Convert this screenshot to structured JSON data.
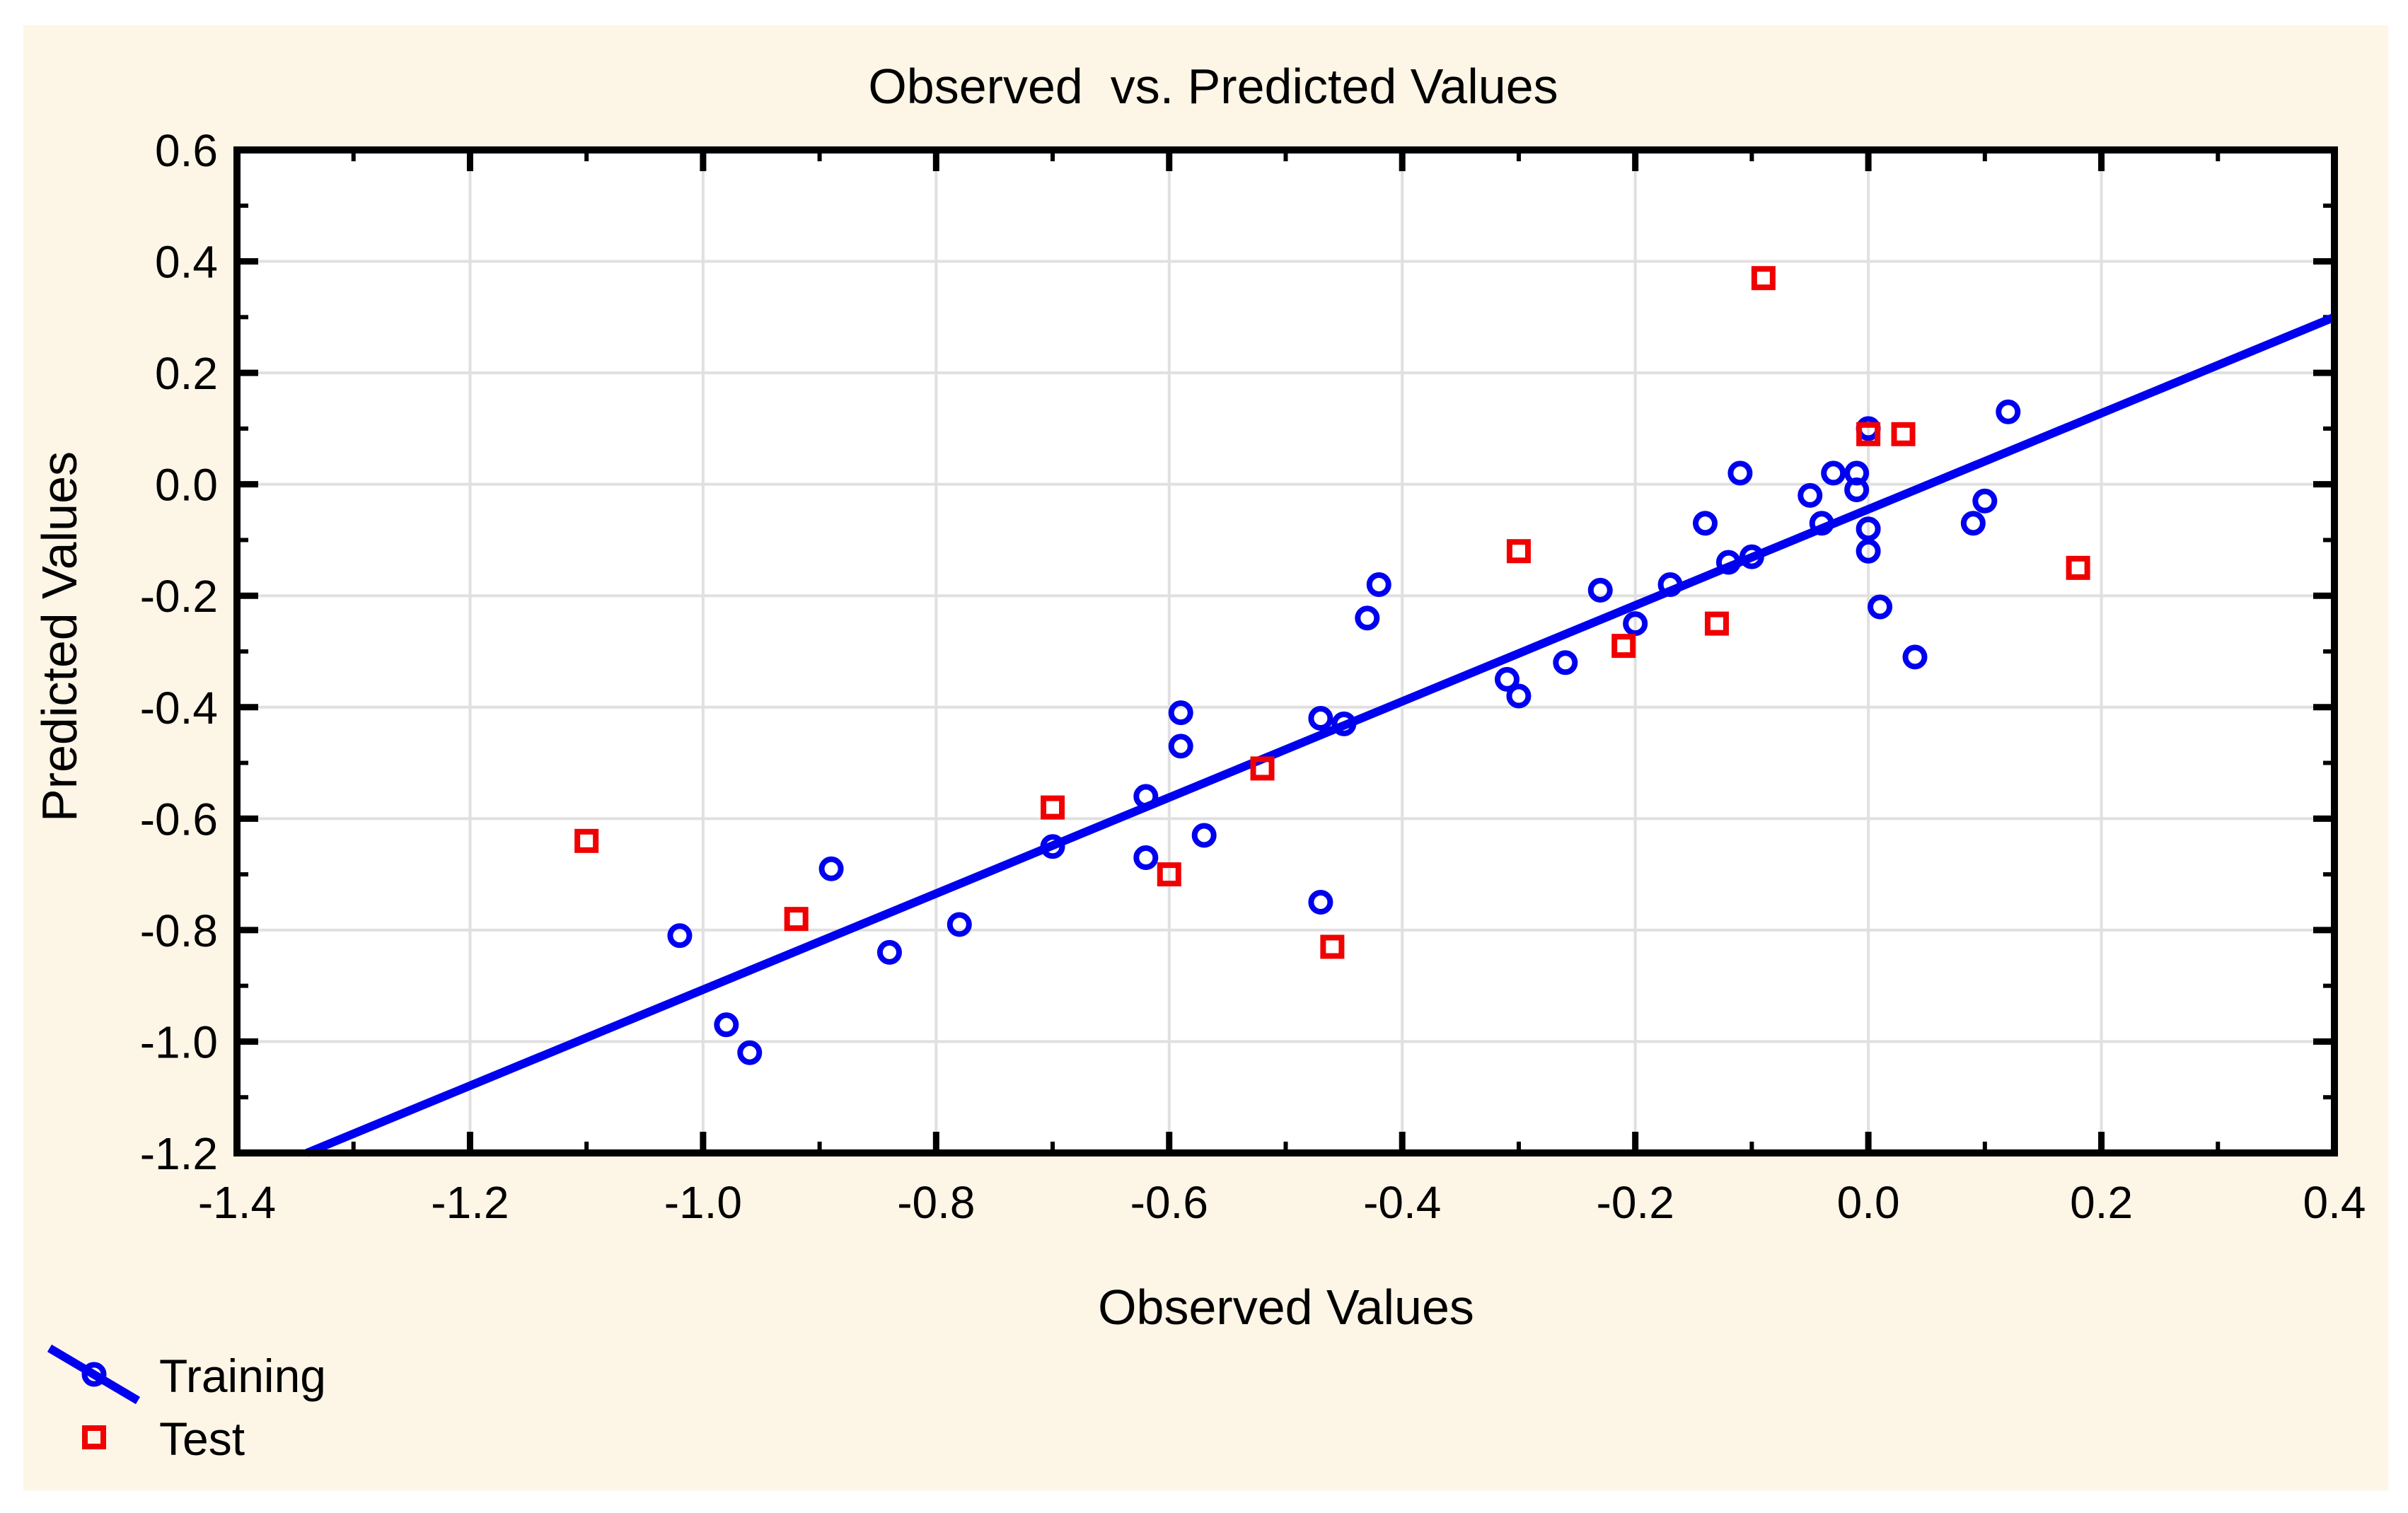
{
  "title": "Observed  vs. Predicted Values",
  "x_axis": {
    "label": "Observed Values",
    "min": -1.4,
    "max": 0.4,
    "major_step": 0.2,
    "minor_step": 0.1,
    "tick_values": [
      -1.4,
      -1.2,
      -1.0,
      -0.8,
      -0.6,
      -0.4,
      -0.2,
      0.0,
      0.2,
      0.4
    ],
    "tick_labels": [
      "-1.4",
      "-1.2",
      "-1.0",
      "-0.8",
      "-0.6",
      "-0.4",
      "-0.2",
      "0.0",
      "0.2",
      "0.4"
    ]
  },
  "y_axis": {
    "label": "Predicted Values",
    "min": -1.2,
    "max": 0.6,
    "major_step": 0.2,
    "minor_step": 0.1,
    "tick_values": [
      0.6,
      0.4,
      0.2,
      0.0,
      -0.2,
      -0.4,
      -0.6,
      -0.8,
      -1.0,
      -1.2
    ],
    "tick_labels": [
      "0.6",
      "0.4",
      "0.2",
      "0.0",
      "-0.2",
      "-0.4",
      "-0.6",
      "-0.8",
      "-1.0",
      "-1.2"
    ]
  },
  "legend": {
    "items": [
      {
        "label": "Training",
        "marker": "circle-on-line",
        "color": "#0000F0"
      },
      {
        "label": "Test",
        "marker": "square",
        "color": "#F00000"
      }
    ]
  },
  "colors": {
    "page_background": "#FFFFFF",
    "panel_background": "#FDF5E6",
    "plot_background": "#FFFFFF",
    "grid": "#E0E0E0",
    "axis": "#000000",
    "training": "#0000F0",
    "test": "#F00000",
    "fit_line": "#0000F0"
  },
  "chart_data": {
    "type": "scatter",
    "title": "Observed  vs. Predicted Values",
    "xlabel": "Observed Values",
    "ylabel": "Predicted Values",
    "xlim": [
      -1.4,
      0.4
    ],
    "ylim": [
      -1.2,
      0.6
    ],
    "grid": true,
    "legend_position": "bottom-left",
    "series": [
      {
        "name": "Training",
        "marker": "circle",
        "color": "#0000F0",
        "points": [
          [
            -1.02,
            -0.81
          ],
          [
            -0.98,
            -0.97
          ],
          [
            -0.96,
            -1.02
          ],
          [
            -0.89,
            -0.69
          ],
          [
            -0.84,
            -0.84
          ],
          [
            -0.78,
            -0.79
          ],
          [
            -0.7,
            -0.65
          ],
          [
            -0.62,
            -0.56
          ],
          [
            -0.62,
            -0.67
          ],
          [
            -0.59,
            -0.41
          ],
          [
            -0.59,
            -0.47
          ],
          [
            -0.57,
            -0.63
          ],
          [
            -0.47,
            -0.42
          ],
          [
            -0.45,
            -0.43
          ],
          [
            -0.47,
            -0.75
          ],
          [
            -0.42,
            -0.18
          ],
          [
            -0.43,
            -0.24
          ],
          [
            -0.31,
            -0.35
          ],
          [
            -0.3,
            -0.38
          ],
          [
            -0.26,
            -0.32
          ],
          [
            -0.23,
            -0.19
          ],
          [
            -0.2,
            -0.25
          ],
          [
            -0.17,
            -0.18
          ],
          [
            -0.14,
            -0.07
          ],
          [
            -0.12,
            -0.14
          ],
          [
            -0.1,
            -0.13
          ],
          [
            -0.11,
            0.02
          ],
          [
            -0.05,
            -0.02
          ],
          [
            -0.04,
            -0.07
          ],
          [
            -0.03,
            0.02
          ],
          [
            -0.01,
            0.02
          ],
          [
            -0.01,
            -0.01
          ],
          [
            0.0,
            0.1
          ],
          [
            0.0,
            -0.08
          ],
          [
            0.0,
            -0.12
          ],
          [
            0.01,
            -0.22
          ],
          [
            0.04,
            -0.31
          ],
          [
            0.09,
            -0.07
          ],
          [
            0.1,
            -0.03
          ],
          [
            0.12,
            0.13
          ]
        ]
      },
      {
        "name": "Test",
        "marker": "square",
        "color": "#F00000",
        "points": [
          [
            -1.1,
            -0.64
          ],
          [
            -0.92,
            -0.78
          ],
          [
            -0.7,
            -0.58
          ],
          [
            -0.6,
            -0.7
          ],
          [
            -0.52,
            -0.51
          ],
          [
            -0.46,
            -0.83
          ],
          [
            -0.3,
            -0.12
          ],
          [
            -0.21,
            -0.29
          ],
          [
            -0.13,
            -0.25
          ],
          [
            -0.09,
            0.37
          ],
          [
            0.0,
            0.09
          ],
          [
            0.03,
            0.09
          ],
          [
            0.18,
            -0.15
          ]
        ]
      }
    ],
    "fit_line": {
      "x1": -1.34,
      "y1": -1.2,
      "x2": 0.4,
      "y2": 0.3
    }
  }
}
